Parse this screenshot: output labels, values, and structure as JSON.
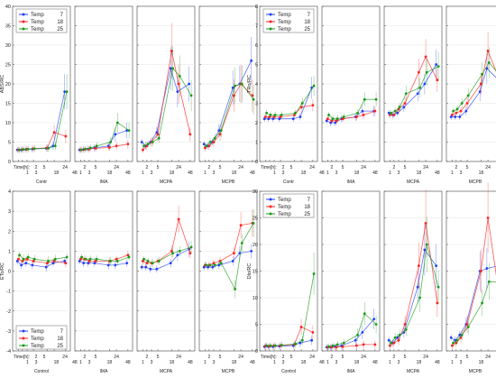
{
  "chart_data": {
    "type": "line",
    "layout": "2x2 groups of 4 panels",
    "series_names": [
      "Temp",
      "Temp",
      "Temp"
    ],
    "series_values": [
      "7",
      "18",
      "25"
    ],
    "series_colors": [
      "#1f3fff",
      "#ff2020",
      "#1a9a1a"
    ],
    "x_axis_title": "Time[h]:",
    "x_tick_top": [
      "2",
      "5",
      "24"
    ],
    "x_tick_bottom": [
      "1",
      "3",
      "18",
      "48"
    ],
    "x_categories": [
      1,
      2,
      3,
      5,
      18,
      24,
      48
    ],
    "groups": [
      {
        "ylabel": "ABS/RC",
        "ylim": [
          0,
          40
        ],
        "yticks": [
          "0",
          "5",
          "10",
          "15",
          "20",
          "25",
          "30",
          "35",
          "40"
        ],
        "legend": "top-left",
        "panels": [
          {
            "name": "Contr",
            "series": [
              [
                3,
                3,
                3.1,
                3.2,
                3.4,
                4,
                18
              ],
              [
                3,
                3.1,
                3.2,
                3.3,
                3.5,
                7.5,
                6.5
              ],
              [
                3,
                3.1,
                3.2,
                3.3,
                3.4,
                4,
                18
              ]
            ]
          },
          {
            "name": "IMA",
            "series": [
              [
                3,
                3.1,
                3.2,
                3.5,
                4,
                7,
                8
              ],
              [
                3,
                3.1,
                3.2,
                3.4,
                3.6,
                4,
                4.5
              ],
              [
                3,
                3.2,
                3.5,
                4,
                5,
                10,
                8
              ]
            ]
          },
          {
            "name": "MCPA",
            "series": [
              [
                5,
                4,
                5,
                7.5,
                24,
                18,
                20
              ],
              [
                3,
                4,
                5,
                7,
                28.5,
                20,
                7
              ],
              [
                4,
                4.5,
                5,
                6,
                24,
                22,
                17
              ]
            ]
          },
          {
            "name": "MCPB",
            "series": [
              [
                4.5,
                4,
                5,
                8,
                19,
                20,
                26
              ],
              [
                3.5,
                4,
                5,
                7,
                17,
                20,
                17
              ],
              [
                4,
                5,
                6,
                8,
                19.5,
                20,
                16
              ]
            ]
          }
        ]
      },
      {
        "ylabel": "TRo/RC",
        "ylim": [
          0,
          8
        ],
        "yticks": [
          "0",
          "1",
          "2",
          "3",
          "4",
          "5",
          "6",
          "7",
          "8"
        ],
        "legend": "top-left",
        "panels": [
          {
            "name": "Contr",
            "series": [
              [
                2.2,
                2.2,
                2.2,
                2.2,
                2.2,
                2.3,
                3.8
              ],
              [
                2.3,
                2.3,
                2.3,
                2.3,
                2.4,
                2.8,
                2.9
              ],
              [
                2.5,
                2.4,
                2.4,
                2.4,
                2.5,
                3,
                3.9
              ]
            ]
          },
          {
            "name": "IMA",
            "series": [
              [
                2.1,
                2,
                2,
                2.2,
                2.3,
                2.6,
                2.6
              ],
              [
                2.2,
                2.1,
                2.1,
                2.2,
                2.3,
                2.4,
                2.6
              ],
              [
                2.4,
                2.2,
                2.2,
                2.3,
                2.5,
                3.2,
                3.2
              ]
            ]
          },
          {
            "name": "MCPA",
            "series": [
              [
                2.5,
                2.4,
                2.5,
                2.8,
                3.5,
                4,
                5
              ],
              [
                2.4,
                2.4,
                2.7,
                3,
                4.6,
                5.4,
                4.2
              ],
              [
                2.5,
                2.6,
                2.8,
                3.5,
                3.8,
                4.6,
                4.9
              ]
            ]
          },
          {
            "name": "MCPB",
            "series": [
              [
                2.3,
                2.3,
                2.3,
                2.6,
                3.6,
                4.8,
                4.2
              ],
              [
                2.4,
                2.5,
                2.6,
                3,
                4,
                5.7,
                4.2
              ],
              [
                2.6,
                2.7,
                3,
                3.4,
                4.5,
                5.1,
                4.4
              ]
            ]
          }
        ]
      },
      {
        "ylabel": "ETo/RC",
        "ylim": [
          -4,
          4
        ],
        "yticks": [
          "-4",
          "-3",
          "-2",
          "-1",
          "0",
          "1",
          "2",
          "3",
          "4"
        ],
        "legend": "bottom-left",
        "panels": [
          {
            "name": "Control",
            "series": [
              [
                0.5,
                0.3,
                0.4,
                0.3,
                0.2,
                0.4,
                0.5
              ],
              [
                0.6,
                0.5,
                0.6,
                0.5,
                0.4,
                0.5,
                0.4
              ],
              [
                0.8,
                0.6,
                0.7,
                0.6,
                0.5,
                0.6,
                0.7
              ]
            ]
          },
          {
            "name": "IMA",
            "series": [
              [
                0.5,
                0.4,
                0.4,
                0.4,
                0.3,
                0.3,
                0.4
              ],
              [
                0.6,
                0.6,
                0.5,
                0.5,
                0.5,
                0.6,
                0.8
              ],
              [
                0.7,
                0.6,
                0.6,
                0.6,
                0.5,
                0.5,
                0.7
              ]
            ]
          },
          {
            "name": "MCPA",
            "series": [
              [
                0.2,
                0.2,
                0.1,
                0.1,
                0.4,
                0.8,
                1.1
              ],
              [
                0.5,
                0.4,
                0.4,
                0.5,
                1,
                2.6,
                0.9
              ],
              [
                0.6,
                0.5,
                0.4,
                0.5,
                0.9,
                1,
                1.2
              ]
            ]
          },
          {
            "name": "MCPB",
            "series": [
              [
                0.2,
                0.2,
                0.2,
                0.3,
                0.5,
                0.9,
                1
              ],
              [
                0.3,
                0.3,
                0.4,
                0.5,
                0.9,
                2.3,
                2.4
              ],
              [
                0.3,
                0.3,
                0.3,
                0.4,
                -0.9,
                1.4,
                2.4
              ]
            ]
          }
        ]
      },
      {
        "ylabel": "Dlo/RC",
        "ylim": [
          0,
          30
        ],
        "yticks": [
          "0",
          "5",
          "10",
          "15",
          "20",
          "25",
          "30"
        ],
        "legend": "top-left",
        "panels": [
          {
            "name": "Control",
            "series": [
              [
                0.8,
                0.8,
                0.8,
                0.9,
                1,
                1.5,
                2
              ],
              [
                0.9,
                0.9,
                1,
                1,
                1.2,
                4.5,
                3.5
              ],
              [
                1,
                1,
                1,
                1.1,
                1.3,
                2,
                14.5
              ]
            ]
          },
          {
            "name": "IMA",
            "series": [
              [
                0.7,
                0.7,
                0.8,
                1,
                2,
                3.5,
                6
              ],
              [
                0.7,
                0.7,
                0.7,
                0.8,
                1,
                1.2,
                1.2
              ],
              [
                0.8,
                1,
                1.2,
                1.5,
                3,
                7,
                5
              ]
            ]
          },
          {
            "name": "MCPA",
            "series": [
              [
                2,
                1.5,
                2.5,
                3.5,
                12,
                19,
                16
              ],
              [
                1,
                1.5,
                2,
                5,
                16,
                24,
                9
              ],
              [
                1.5,
                2.5,
                3,
                4,
                10,
                20,
                12
              ]
            ]
          },
          {
            "name": "MCPB",
            "series": [
              [
                2.5,
                2,
                3,
                5,
                15,
                15.5,
                16
              ],
              [
                1,
                1.5,
                2.5,
                5,
                15,
                25,
                10
              ],
              [
                1.5,
                2,
                3,
                4.5,
                9,
                13,
                13
              ]
            ]
          }
        ]
      }
    ]
  }
}
